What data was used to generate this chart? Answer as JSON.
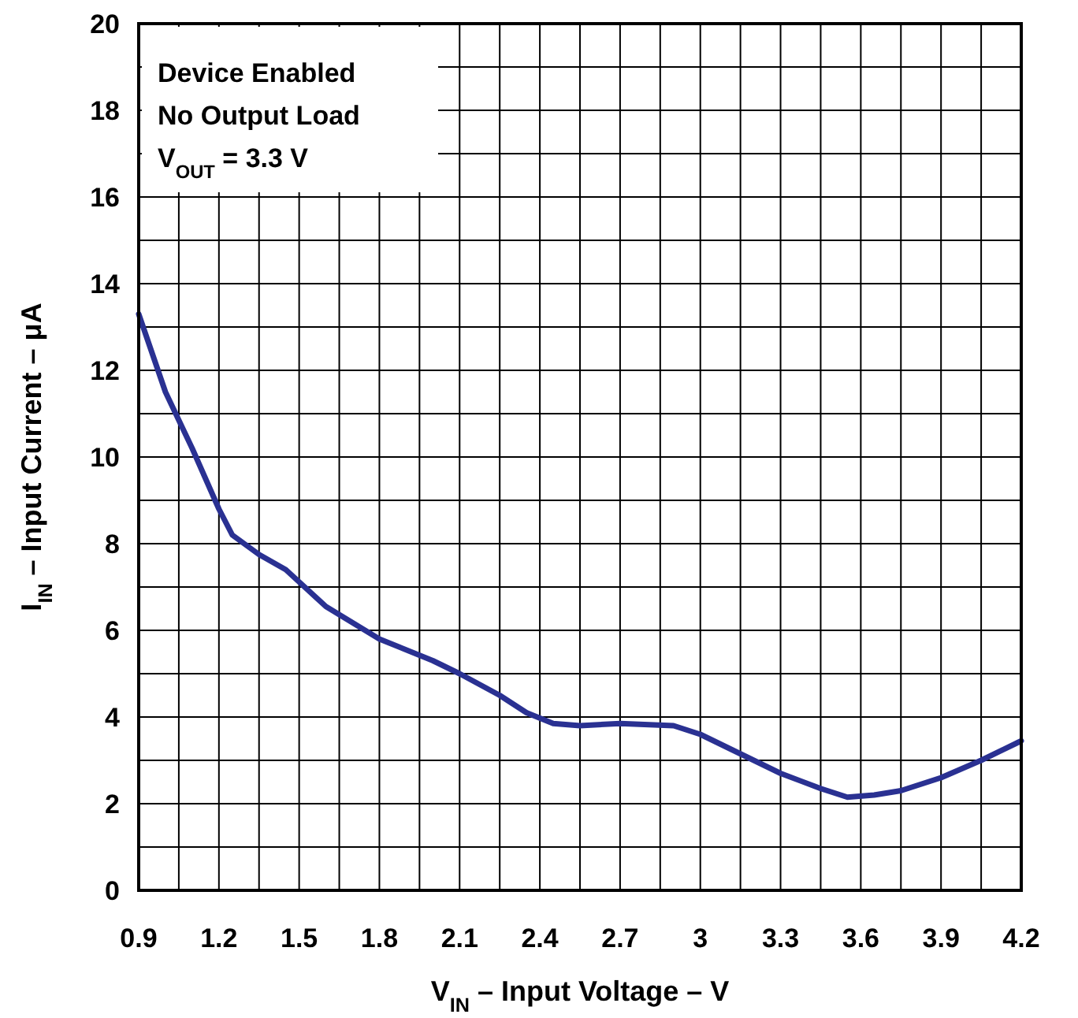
{
  "chart_data": {
    "type": "line",
    "xlabel": "V$_{IN}$ – Input Voltage – V",
    "ylabel": "I$_{IN}$ – Input Current – μA",
    "annotations": [
      "Device Enabled",
      "No Output Load",
      "V$_{OUT}$ = 3.3 V"
    ],
    "xlim": [
      0.9,
      4.2
    ],
    "ylim": [
      0,
      20
    ],
    "xticks": [
      0.9,
      {
        "value": 1.05,
        "label": null
      },
      1.2,
      {
        "value": 1.35,
        "label": null
      },
      1.5,
      {
        "value": 1.65,
        "label": null
      },
      1.8,
      {
        "value": 1.95,
        "label": null
      },
      2.1,
      {
        "value": 2.25,
        "label": null
      },
      2.4,
      {
        "value": 2.55,
        "label": null
      },
      2.7,
      {
        "value": 2.85,
        "label": null
      },
      3,
      {
        "value": 3.15,
        "label": null
      },
      3.3,
      {
        "value": 3.45,
        "label": null
      },
      3.6,
      {
        "value": 3.75,
        "label": null
      },
      3.9,
      {
        "value": 4.05,
        "label": null
      },
      4.2
    ],
    "yticks": [
      0,
      {
        "value": 1,
        "label": null
      },
      2,
      {
        "value": 3,
        "label": null
      },
      4,
      {
        "value": 5,
        "label": null
      },
      6,
      {
        "value": 7,
        "label": null
      },
      8,
      {
        "value": 9,
        "label": null
      },
      10,
      {
        "value": 11,
        "label": null
      },
      12,
      {
        "value": 13,
        "label": null
      },
      14,
      {
        "value": 15,
        "label": null
      },
      16,
      {
        "value": 17,
        "label": null
      },
      18,
      {
        "value": 19,
        "label": null
      },
      20
    ],
    "grid": true,
    "marker": "none",
    "line_style": "solid",
    "series": [
      {
        "color": "#2a3192",
        "x": [
          0.9,
          1.0,
          1.1,
          1.2,
          1.25,
          1.35,
          1.45,
          1.6,
          1.8,
          2.0,
          2.1,
          2.25,
          2.35,
          2.45,
          2.55,
          2.7,
          2.9,
          3.0,
          3.15,
          3.3,
          3.45,
          3.55,
          3.65,
          3.75,
          3.9,
          4.05,
          4.2
        ],
        "values": [
          13.3,
          11.5,
          10.2,
          8.8,
          8.2,
          7.75,
          7.4,
          6.55,
          5.8,
          5.3,
          5.0,
          4.5,
          4.1,
          3.85,
          3.8,
          3.85,
          3.8,
          3.6,
          3.15,
          2.7,
          2.35,
          2.15,
          2.2,
          2.3,
          2.6,
          3.0,
          3.45
        ]
      }
    ]
  }
}
